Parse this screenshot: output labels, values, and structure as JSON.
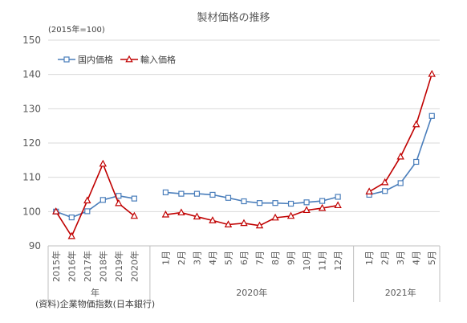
{
  "chart_data": {
    "type": "line",
    "title": "製材価格の推移",
    "unit_note": "(2015年=100)",
    "source": "(資料)企業物価指数(日本銀行)",
    "legend_position": "top-left",
    "ylim": [
      90,
      150
    ],
    "yticks": [
      90,
      100,
      110,
      120,
      130,
      140,
      150
    ],
    "grid": true,
    "categories": [
      [
        "2015年",
        "2016年",
        "2017年",
        "2018年",
        "2019年",
        "2020年"
      ],
      [
        "1月",
        "2月",
        "3月",
        "4月",
        "5月",
        "6月",
        "7月",
        "8月",
        "9月",
        "10月",
        "11月",
        "12月"
      ],
      [
        "1月",
        "2月",
        "3月",
        "4月",
        "5月"
      ]
    ],
    "groups": [
      "年",
      "2020年",
      "2021年"
    ],
    "series": [
      {
        "name": "国内価格",
        "color": "#4a7ebb",
        "marker": "square",
        "values": [
          [
            100.0,
            98.3,
            100.1,
            103.4,
            104.6,
            103.8
          ],
          [
            105.6,
            105.2,
            105.2,
            104.9,
            104.0,
            103.0,
            102.5,
            102.5,
            102.3,
            102.7,
            103.1,
            104.3
          ],
          [
            104.9,
            106.0,
            108.3,
            114.5,
            127.9
          ]
        ]
      },
      {
        "name": "輸入価格",
        "color": "#c00000",
        "marker": "triangle",
        "values": [
          [
            100.0,
            92.8,
            103.2,
            113.9,
            102.4,
            98.7
          ],
          [
            99.1,
            99.7,
            98.5,
            97.4,
            96.2,
            96.6,
            95.9,
            98.2,
            98.7,
            100.4,
            101.0,
            101.8
          ],
          [
            105.8,
            108.5,
            116.0,
            125.4,
            140.1
          ]
        ]
      }
    ]
  }
}
